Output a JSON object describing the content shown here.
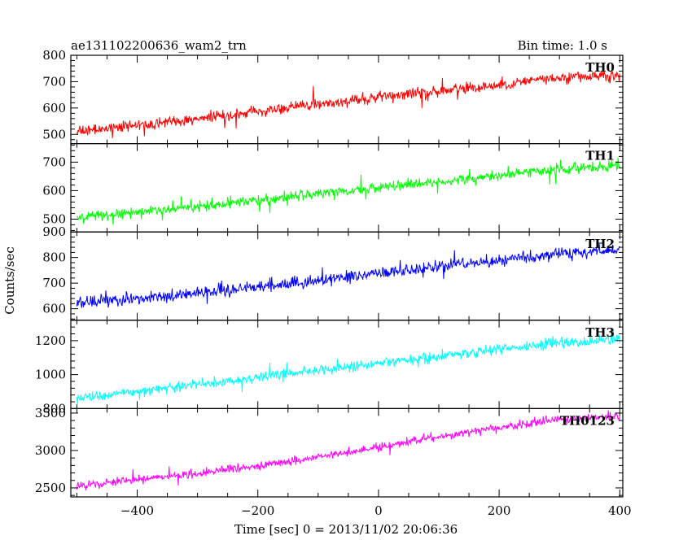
{
  "header": {
    "left": "ae131102200636_wam2_trn",
    "right": "Bin time: 1.0 s"
  },
  "ylabel": "Counts/sec",
  "xlabel": "Time [sec] 0 = 2013/11/02 20:06:36",
  "chart_data": {
    "type": "line",
    "x_range": [
      -510,
      405
    ],
    "x_ticks": [
      -400,
      -200,
      0,
      200,
      400
    ],
    "x_tick_labels": [
      "−400",
      "−200",
      "0",
      "200",
      "400"
    ],
    "bin_time_s": 1.0,
    "panels": [
      {
        "name": "TH0",
        "color": "#ff0000",
        "ylim": [
          465,
          800
        ],
        "y_ticks": [
          500,
          600,
          700,
          800
        ],
        "y_tick_labels": [
          "500",
          "600",
          "700",
          "800"
        ],
        "trend": [
          [
            -500,
            510
          ],
          [
            -300,
            560
          ],
          [
            -100,
            615
          ],
          [
            100,
            665
          ],
          [
            300,
            715
          ],
          [
            400,
            725
          ]
        ],
        "noise": 28
      },
      {
        "name": "TH1",
        "color": "#00ff00",
        "ylim": [
          455,
          765
        ],
        "y_ticks": [
          500,
          600,
          700
        ],
        "y_tick_labels": [
          "500",
          "600",
          "700"
        ],
        "trend": [
          [
            -500,
            505
          ],
          [
            -300,
            545
          ],
          [
            -100,
            590
          ],
          [
            100,
            630
          ],
          [
            300,
            675
          ],
          [
            400,
            690
          ]
        ],
        "noise": 24
      },
      {
        "name": "TH2",
        "color": "#0000ff",
        "ylim": [
          555,
          900
        ],
        "y_ticks": [
          600,
          700,
          800,
          900
        ],
        "y_tick_labels": [
          "600",
          "700",
          "800",
          "900"
        ],
        "trend": [
          [
            -500,
            620
          ],
          [
            -300,
            660
          ],
          [
            -100,
            710
          ],
          [
            100,
            765
          ],
          [
            300,
            815
          ],
          [
            400,
            830
          ]
        ],
        "noise": 30
      },
      {
        "name": "TH3",
        "color": "#00ffff",
        "ylim": [
          800,
          1320
        ],
        "y_ticks": [
          800,
          1000,
          1200
        ],
        "y_tick_labels": [
          "800",
          "1000",
          "1200"
        ],
        "trend": [
          [
            -500,
            860
          ],
          [
            -300,
            940
          ],
          [
            -100,
            1025
          ],
          [
            100,
            1110
          ],
          [
            300,
            1185
          ],
          [
            400,
            1210
          ]
        ],
        "noise": 40
      },
      {
        "name": "TH0123",
        "color": "#ff00ff",
        "ylim": [
          2380,
          3560
        ],
        "y_ticks": [
          2500,
          3000,
          3500
        ],
        "y_tick_labels": [
          "2500",
          "3000",
          "3500"
        ],
        "trend": [
          [
            -500,
            2530
          ],
          [
            -300,
            2690
          ],
          [
            -100,
            2910
          ],
          [
            100,
            3180
          ],
          [
            300,
            3420
          ],
          [
            400,
            3450
          ]
        ],
        "noise": 70
      }
    ]
  }
}
